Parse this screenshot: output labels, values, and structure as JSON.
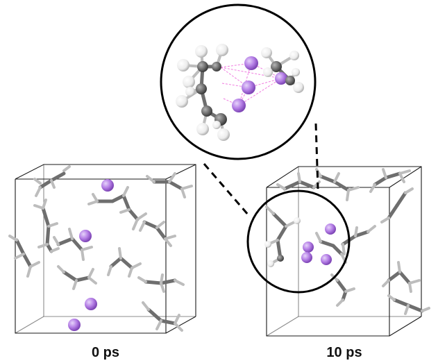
{
  "panels": [
    {
      "label": "0 ps"
    },
    {
      "label": "10 ps"
    }
  ],
  "colors": {
    "carbon": "#6e6e6e",
    "hydrogen": "#f2f2f2",
    "lithium": "#b57fe6",
    "contact_line": "#f07be0",
    "outline": "#000000"
  },
  "icons": {
    "atom": "sphere",
    "bond": "stick"
  }
}
